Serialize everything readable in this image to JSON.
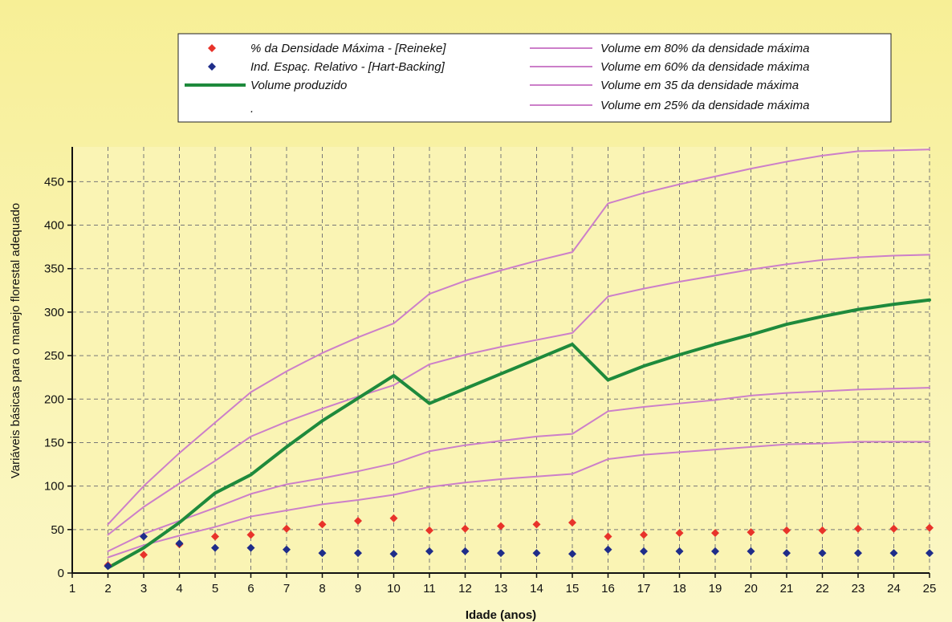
{
  "chart_data": {
    "type": "line",
    "xlabel": "Idade (anos)",
    "ylabel": "Variáveis básicas para o manejo florestal adequado",
    "xlim": [
      1,
      25
    ],
    "ylim": [
      0,
      490
    ],
    "x_ticks": [
      "1",
      "2",
      "3",
      "4",
      "5",
      "6",
      "7",
      "8",
      "9",
      "10",
      "11",
      "12",
      "13",
      "14",
      "15",
      "16",
      "17",
      "18",
      "19",
      "20",
      "21",
      "22",
      "23",
      "24",
      "25"
    ],
    "y_ticks": [
      "0",
      "50",
      "100",
      "150",
      "200",
      "250",
      "300",
      "350",
      "400",
      "450"
    ],
    "grid": true,
    "legend_position": "top",
    "x": [
      2,
      3,
      4,
      5,
      6,
      7,
      8,
      9,
      10,
      11,
      12,
      13,
      14,
      15,
      16,
      17,
      18,
      19,
      20,
      21,
      22,
      23,
      24,
      25
    ],
    "series": [
      {
        "name": "% da Densidade Máxima - [Reineke]",
        "kind": "points",
        "color": "#e8332a",
        "values": [
          9,
          21,
          33,
          42,
          44,
          51,
          56,
          60,
          63,
          49,
          51,
          54,
          56,
          58,
          42,
          44,
          46,
          46,
          47,
          49,
          49,
          51,
          51,
          52
        ]
      },
      {
        "name": "Ind. Espaç. Relativo - [Hart-Backing]",
        "kind": "points",
        "color": "#1f2d8a",
        "values": [
          8,
          42,
          34,
          29,
          29,
          27,
          23,
          23,
          22,
          25,
          25,
          23,
          23,
          22,
          27,
          25,
          25,
          25,
          25,
          23,
          23,
          23,
          23,
          23
        ]
      },
      {
        "name": "Volume produzido",
        "kind": "line",
        "color": "#1e8a3c",
        "width": 4,
        "values": [
          6,
          29,
          58,
          92,
          113,
          145,
          175,
          201,
          227,
          195,
          212,
          229,
          246,
          263,
          222,
          238,
          251,
          263,
          274,
          286,
          295,
          303,
          309,
          314
        ]
      },
      {
        "name": "Volume em 80% da densidade máxima",
        "kind": "line",
        "color": "#cc7fc9",
        "width": 2,
        "values": [
          56,
          100,
          138,
          173,
          208,
          232,
          253,
          271,
          287,
          321,
          336,
          348,
          359,
          369,
          425,
          437,
          447,
          456,
          465,
          473,
          480,
          485,
          486,
          487
        ]
      },
      {
        "name": "Volume em 60% da densidade máxima",
        "kind": "line",
        "color": "#cc7fc9",
        "width": 2,
        "values": [
          44,
          76,
          103,
          129,
          157,
          174,
          189,
          203,
          216,
          240,
          251,
          260,
          268,
          276,
          318,
          327,
          335,
          342,
          349,
          355,
          360,
          363,
          365,
          366
        ]
      },
      {
        "name": "Volume em 35 da densidade máxima",
        "kind": "line",
        "color": "#cc7fc9",
        "width": 2,
        "values": [
          25,
          45,
          60,
          75,
          91,
          102,
          109,
          117,
          126,
          140,
          147,
          152,
          157,
          160,
          186,
          191,
          195,
          199,
          204,
          207,
          209,
          211,
          212,
          213
        ]
      },
      {
        "name": "Volume em 25% da densidade máxima",
        "kind": "line",
        "color": "#cc7fc9",
        "width": 2,
        "values": [
          18,
          32,
          43,
          53,
          65,
          72,
          79,
          84,
          90,
          99,
          104,
          108,
          111,
          114,
          131,
          136,
          139,
          142,
          145,
          148,
          149,
          151,
          151,
          151
        ]
      }
    ]
  },
  "legend": {
    "dot_label": "."
  }
}
